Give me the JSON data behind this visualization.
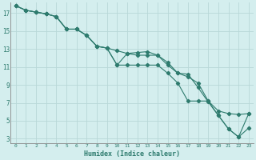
{
  "xlabel": "Humidex (Indice chaleur)",
  "bg_color": "#d4eeee",
  "grid_color": "#b8d8d8",
  "line_color": "#2e7b6e",
  "xlim": [
    -0.5,
    23.5
  ],
  "ylim": [
    2.5,
    18.2
  ],
  "xticks": [
    0,
    1,
    2,
    3,
    4,
    5,
    6,
    7,
    8,
    9,
    10,
    11,
    12,
    13,
    14,
    15,
    16,
    17,
    18,
    19,
    20,
    21,
    22,
    23
  ],
  "yticks": [
    3,
    5,
    7,
    9,
    11,
    13,
    15,
    17
  ],
  "line1_x": [
    0,
    1,
    2,
    3,
    4,
    5,
    6,
    7,
    8,
    9,
    10,
    11,
    12,
    13,
    14,
    15,
    16,
    17,
    18,
    19,
    20,
    21,
    22,
    23
  ],
  "line1_y": [
    17.8,
    17.3,
    17.1,
    16.9,
    16.6,
    15.2,
    15.2,
    14.5,
    13.3,
    13.1,
    12.8,
    12.5,
    12.3,
    12.3,
    12.3,
    11.2,
    10.3,
    9.9,
    9.2,
    7.2,
    6.1,
    5.8,
    5.7,
    5.8
  ],
  "line2_x": [
    0,
    1,
    2,
    3,
    4,
    5,
    6,
    7,
    8,
    9,
    10,
    11,
    12,
    13,
    14,
    15,
    16,
    17,
    18,
    19,
    20,
    21,
    22,
    23
  ],
  "line2_y": [
    17.8,
    17.3,
    17.1,
    16.9,
    16.6,
    15.2,
    15.2,
    14.5,
    13.3,
    13.1,
    11.2,
    12.5,
    12.6,
    12.7,
    12.3,
    11.5,
    10.3,
    10.2,
    8.7,
    7.1,
    5.6,
    4.1,
    3.2,
    4.2
  ],
  "line3_x": [
    0,
    1,
    2,
    3,
    4,
    5,
    6,
    7,
    8,
    9,
    10,
    11,
    12,
    13,
    14,
    15,
    16,
    17,
    18,
    19,
    20,
    21,
    22,
    23
  ],
  "line3_y": [
    17.8,
    17.3,
    17.1,
    16.9,
    16.6,
    15.2,
    15.2,
    14.5,
    13.3,
    13.1,
    11.2,
    11.2,
    11.2,
    11.2,
    11.2,
    10.3,
    9.2,
    7.2,
    7.2,
    7.2,
    5.6,
    4.1,
    3.2,
    5.8
  ],
  "xlabel_fontsize": 6.0,
  "tick_fontsize_x": 4.5,
  "tick_fontsize_y": 5.5,
  "linewidth": 0.8,
  "markersize": 2.2
}
